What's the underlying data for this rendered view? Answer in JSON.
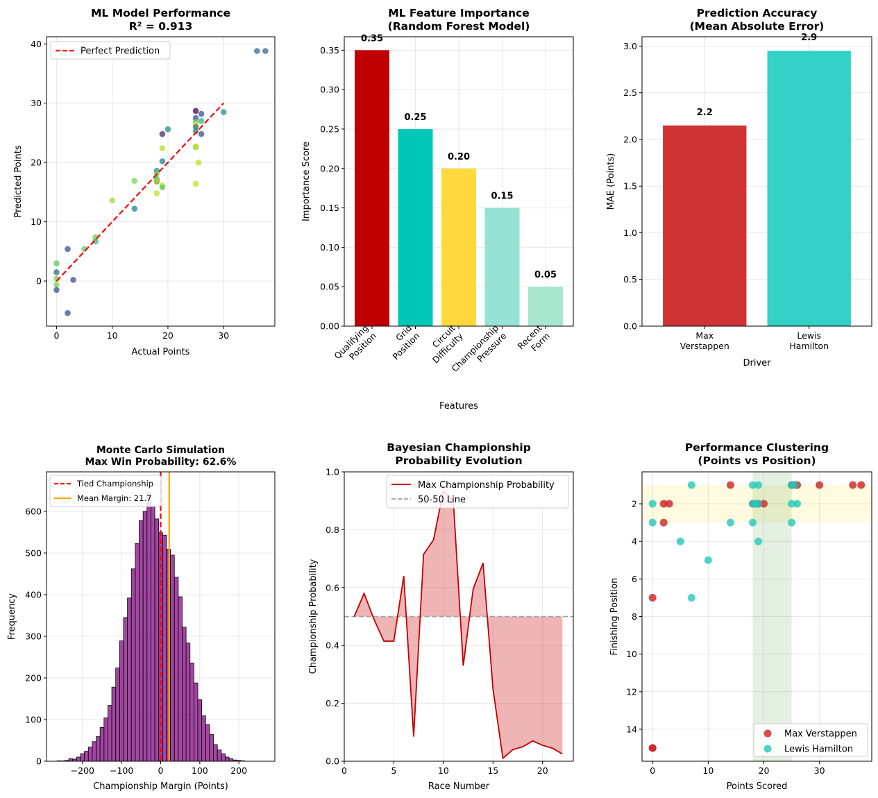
{
  "chart_data": [
    {
      "id": "scatter",
      "type": "scatter",
      "title": "ML Model Performance\nR² = 0.913",
      "xlabel": "Actual Points",
      "ylabel": "Predicted Points",
      "xlim": [
        -1.8,
        39.2
      ],
      "ylim": [
        -7.6,
        41.2
      ],
      "xticks": [
        0,
        10,
        20,
        30
      ],
      "yticks": [
        0,
        10,
        20,
        30,
        40
      ],
      "legend": [
        {
          "label": "Perfect Prediction",
          "color": "#ff0000",
          "style": "dashed"
        }
      ],
      "reference_line": {
        "x": [
          0,
          30
        ],
        "y": [
          0,
          30
        ],
        "color": "#ff0000"
      },
      "points": [
        {
          "x": 36,
          "y": 38.8,
          "color": "#31688e"
        },
        {
          "x": 37.5,
          "y": 38.8,
          "color": "#31688e"
        },
        {
          "x": 30,
          "y": 28.5,
          "color": "#21918c"
        },
        {
          "x": 25,
          "y": 28.7,
          "color": "#440154"
        },
        {
          "x": 26,
          "y": 28.2,
          "color": "#3b528b"
        },
        {
          "x": 25,
          "y": 27.5,
          "color": "#3b528b"
        },
        {
          "x": 26,
          "y": 27.0,
          "color": "#35b779"
        },
        {
          "x": 25,
          "y": 26.8,
          "color": "#5ec962"
        },
        {
          "x": 25,
          "y": 26.3,
          "color": "#fde725"
        },
        {
          "x": 25,
          "y": 26.0,
          "color": "#31688e"
        },
        {
          "x": 25,
          "y": 25.3,
          "color": "#21918c"
        },
        {
          "x": 26,
          "y": 24.8,
          "color": "#3b528b"
        },
        {
          "x": 20,
          "y": 25.6,
          "color": "#21918c"
        },
        {
          "x": 19,
          "y": 24.8,
          "color": "#482878"
        },
        {
          "x": 25,
          "y": 22.6,
          "color": "#7ad151"
        },
        {
          "x": 25,
          "y": 22.7,
          "color": "#bddf26"
        },
        {
          "x": 19,
          "y": 22.4,
          "color": "#bddf26"
        },
        {
          "x": 19,
          "y": 20.2,
          "color": "#26828e"
        },
        {
          "x": 25.5,
          "y": 20.0,
          "color": "#bddf26"
        },
        {
          "x": 18,
          "y": 18.6,
          "color": "#21918c"
        },
        {
          "x": 18,
          "y": 18.1,
          "color": "#7ad151"
        },
        {
          "x": 18,
          "y": 17.2,
          "color": "#35b779"
        },
        {
          "x": 18,
          "y": 16.8,
          "color": "#3b528b"
        },
        {
          "x": 18,
          "y": 16.9,
          "color": "#bddf26"
        },
        {
          "x": 14,
          "y": 16.9,
          "color": "#7ad151"
        },
        {
          "x": 25,
          "y": 16.4,
          "color": "#bddf26"
        },
        {
          "x": 19,
          "y": 16.1,
          "color": "#bddf26"
        },
        {
          "x": 19,
          "y": 15.8,
          "color": "#5ec962"
        },
        {
          "x": 18,
          "y": 14.8,
          "color": "#bddf26"
        },
        {
          "x": 10,
          "y": 13.6,
          "color": "#a0da39"
        },
        {
          "x": 14,
          "y": 12.2,
          "color": "#26828e"
        },
        {
          "x": 7,
          "y": 7.4,
          "color": "#7ad151"
        },
        {
          "x": 7,
          "y": 6.7,
          "color": "#35b779"
        },
        {
          "x": 2,
          "y": 5.4,
          "color": "#3b528b"
        },
        {
          "x": 5,
          "y": 5.4,
          "color": "#5ec962"
        },
        {
          "x": 0,
          "y": 3.0,
          "color": "#5ec962"
        },
        {
          "x": 0,
          "y": 1.5,
          "color": "#31688e"
        },
        {
          "x": 0,
          "y": 0.4,
          "color": "#7ad151"
        },
        {
          "x": 3,
          "y": 0.2,
          "color": "#3b528b"
        },
        {
          "x": 0,
          "y": -0.6,
          "color": "#7ad151"
        },
        {
          "x": 0,
          "y": -1.5,
          "color": "#3b528b"
        },
        {
          "x": 2,
          "y": -5.4,
          "color": "#3b528b"
        }
      ]
    },
    {
      "id": "importance",
      "type": "bar",
      "title": "ML Feature Importance\n(Random Forest Model)",
      "xlabel": "Features",
      "ylabel": "Importance Score",
      "categories": [
        "Qualifying\nPosition",
        "Grid\nPosition",
        "Circuit\nDifficulty",
        "Championship\nPressure",
        "Recent\nForm"
      ],
      "values": [
        0.35,
        0.25,
        0.2,
        0.15,
        0.05
      ],
      "value_labels": [
        "0.35",
        "0.25",
        "0.20",
        "0.15",
        "0.05"
      ],
      "colors": [
        "#c00000",
        "#00c8b8",
        "#ffd83e",
        "#96e2d4",
        "#a8e6cf"
      ],
      "ylim": [
        0,
        0.367
      ],
      "yticks": [
        0.0,
        0.05,
        0.1,
        0.15,
        0.2,
        0.25,
        0.3,
        0.35
      ]
    },
    {
      "id": "mae",
      "type": "bar",
      "title": "Prediction Accuracy\n(Mean Absolute Error)",
      "xlabel": "Driver",
      "ylabel": "MAE (Points)",
      "categories": [
        "Max\nVerstappen",
        "Lewis\nHamilton"
      ],
      "values": [
        2.15,
        2.95
      ],
      "value_labels": [
        "2.2",
        "2.9"
      ],
      "colors": [
        "#d03333",
        "#33d1c6"
      ],
      "ylim": [
        0,
        3.1
      ],
      "yticks": [
        0.0,
        0.5,
        1.0,
        1.5,
        2.0,
        2.5,
        3.0
      ]
    },
    {
      "id": "montecarlo",
      "type": "histogram",
      "title": "Monte Carlo Simulation\nMax Win Probability: 62.6%",
      "xlabel": "Championship Margin (Points)",
      "ylabel": "Frequency",
      "xlim": [
        -292,
        292
      ],
      "ylim": [
        0,
        695
      ],
      "xticks": [
        -200,
        -100,
        0,
        100,
        200
      ],
      "yticks": [
        0,
        100,
        200,
        300,
        400,
        500,
        600
      ],
      "bin_start": -265,
      "bin_width": 10,
      "counts": [
        1,
        1,
        2,
        6,
        5,
        10,
        18,
        24,
        34,
        47,
        59,
        81,
        104,
        134,
        178,
        224,
        289,
        345,
        392,
        462,
        523,
        578,
        600,
        645,
        613,
        582,
        549,
        543,
        509,
        495,
        442,
        395,
        322,
        284,
        236,
        188,
        148,
        109,
        88,
        64,
        40,
        27,
        18,
        10,
        6,
        3,
        2,
        1
      ],
      "bar_color": "#800080",
      "reference_lines": [
        {
          "label": "Tied Championship",
          "x": 0,
          "color": "#ff0000",
          "style": "dashed"
        },
        {
          "label": "Mean Margin: 21.7",
          "x": 21.7,
          "color": "#ffa500",
          "style": "solid"
        }
      ]
    },
    {
      "id": "bayes",
      "type": "area",
      "title": "Bayesian Championship\nProbability Evolution",
      "xlabel": "Race Number",
      "ylabel": "Championship Probability",
      "xlim": [
        0,
        23.1
      ],
      "ylim": [
        0,
        1.0
      ],
      "xticks": [
        0,
        5,
        10,
        15,
        20
      ],
      "yticks": [
        0.0,
        0.2,
        0.4,
        0.6,
        0.8,
        1.0
      ],
      "x": [
        1,
        2,
        3,
        4,
        5,
        6,
        7,
        8,
        9,
        10,
        11,
        12,
        13,
        14,
        15,
        16,
        17,
        18,
        19,
        20,
        21,
        22
      ],
      "y": [
        0.5,
        0.58,
        0.49,
        0.415,
        0.415,
        0.64,
        0.085,
        0.715,
        0.765,
        0.935,
        0.9,
        0.33,
        0.595,
        0.685,
        0.25,
        0.01,
        0.04,
        0.05,
        0.07,
        0.055,
        0.045,
        0.025
      ],
      "baseline": 0.5,
      "series_color": "#c00000",
      "fill_color": "#d64646",
      "legend": [
        {
          "label": "Max Championship Probability",
          "color": "#c00000",
          "style": "solid"
        },
        {
          "label": "50-50 Line",
          "color": "#a0a0a0",
          "style": "dashed"
        }
      ]
    },
    {
      "id": "cluster",
      "type": "scatter",
      "title": "Performance Clustering\n(Points vs Position)",
      "xlabel": "Points Scored",
      "ylabel": "Finishing Position",
      "xlim": [
        -1.9,
        39.4
      ],
      "ylim": [
        15.7,
        0.3
      ],
      "yinverted": true,
      "xticks": [
        0,
        10,
        20,
        30
      ],
      "yticks": [
        2,
        4,
        6,
        8,
        10,
        12,
        14
      ],
      "bands": [
        {
          "axis": "y",
          "from": 1,
          "to": 3,
          "color": "#ffd700",
          "opacity": 0.12
        },
        {
          "axis": "x",
          "from": 18,
          "to": 25,
          "color": "#4b9a3f",
          "opacity": 0.15
        }
      ],
      "series": [
        {
          "name": "Max Verstappen",
          "color": "#cc2222",
          "points": [
            [
              14,
              1
            ],
            [
              25,
              1
            ],
            [
              25.5,
              1
            ],
            [
              26,
              1
            ],
            [
              30,
              1
            ],
            [
              36,
              1
            ],
            [
              37.5,
              1
            ],
            [
              2,
              2
            ],
            [
              3,
              2
            ],
            [
              18,
              2
            ],
            [
              19,
              2
            ],
            [
              20,
              2
            ],
            [
              2,
              3
            ],
            [
              0,
              7
            ],
            [
              0,
              15
            ],
            [
              0,
              15
            ]
          ]
        },
        {
          "name": "Lewis Hamilton",
          "color": "#22c9bc",
          "points": [
            [
              7,
              1
            ],
            [
              18,
              1
            ],
            [
              19,
              1
            ],
            [
              25,
              1
            ],
            [
              25.5,
              1
            ],
            [
              0,
              2
            ],
            [
              18,
              2
            ],
            [
              18.5,
              2
            ],
            [
              19,
              2
            ],
            [
              25,
              2
            ],
            [
              26,
              2
            ],
            [
              0,
              3
            ],
            [
              14,
              3
            ],
            [
              18,
              3
            ],
            [
              25,
              3
            ],
            [
              5,
              4
            ],
            [
              19,
              4
            ],
            [
              10,
              5
            ],
            [
              7,
              7
            ]
          ]
        }
      ]
    }
  ]
}
